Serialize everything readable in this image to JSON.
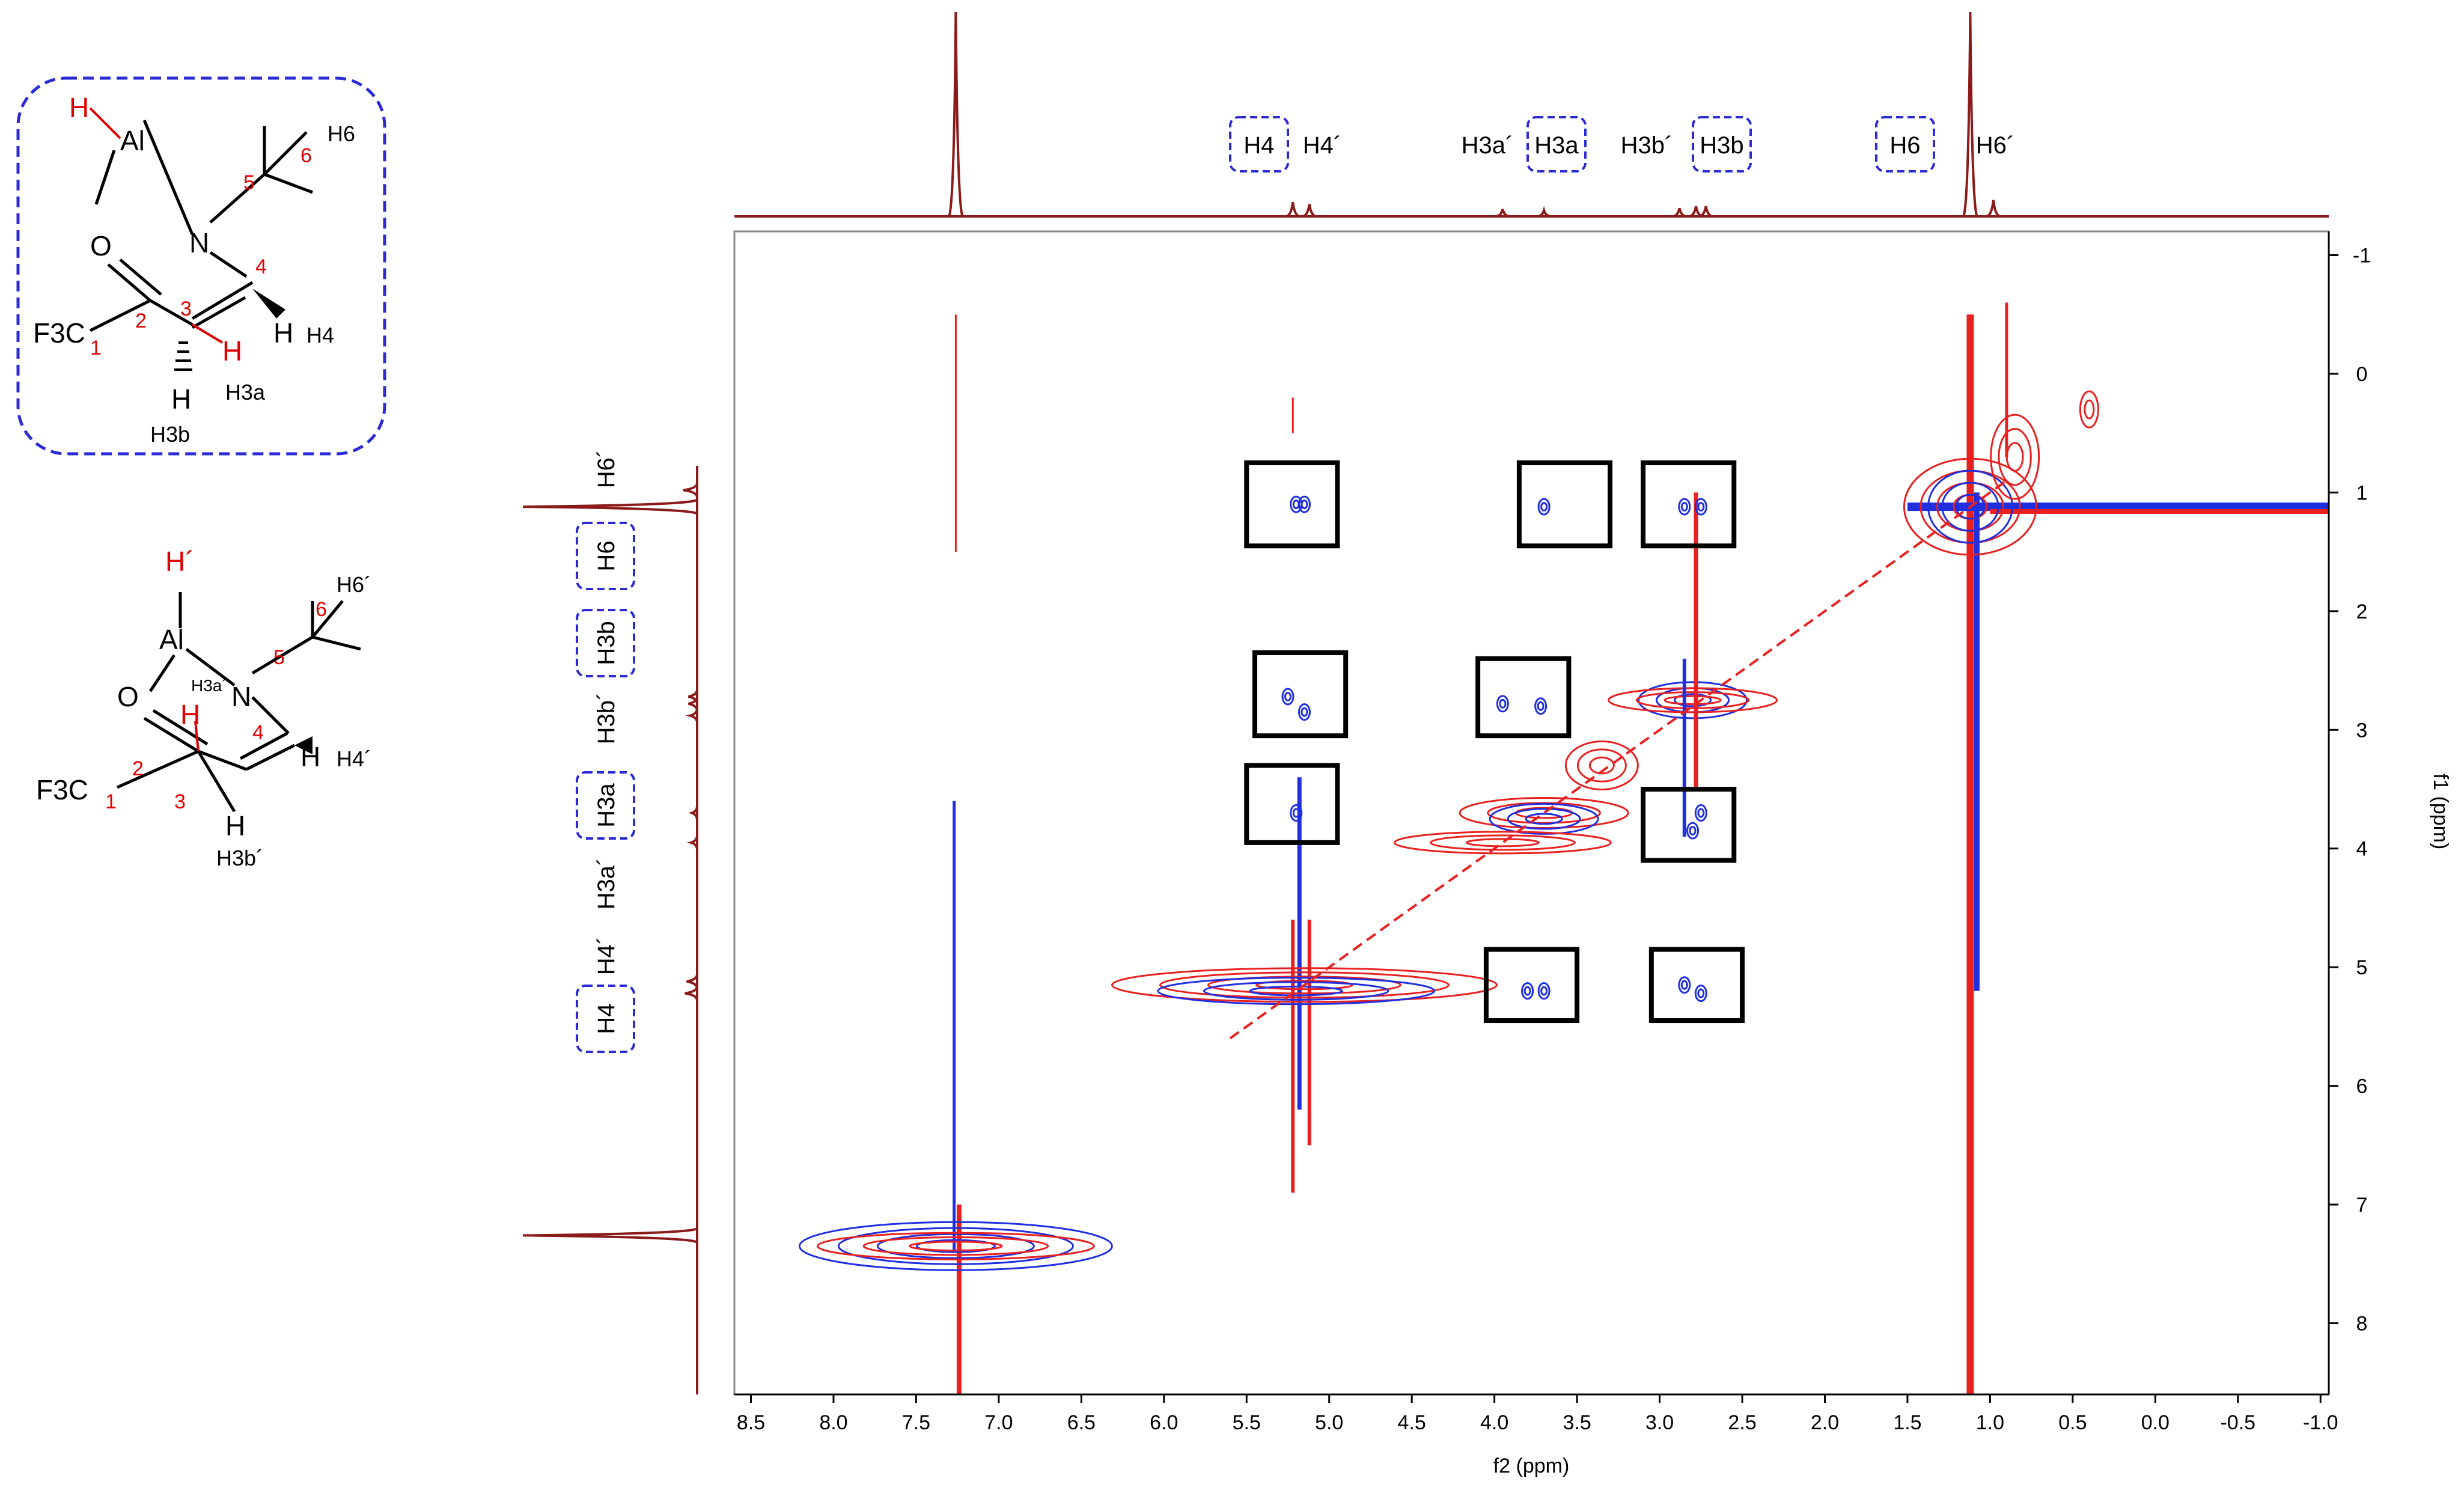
{
  "figure": {
    "structure1": {
      "atoms": {
        "h": "H",
        "al": "Al",
        "o": "O",
        "n": "N",
        "cf3": "F3C"
      },
      "numbers": [
        "1",
        "2",
        "3",
        "4",
        "5",
        "6"
      ],
      "labels": {
        "h6": "H6",
        "h4": "H4",
        "h3a": "H3a",
        "h3b": "H3b"
      }
    },
    "structure2": {
      "atoms": {
        "h": "H´",
        "al": "Al",
        "o": "O",
        "n": "N",
        "cf3": "F3C"
      },
      "numbers": [
        "1",
        "2",
        "3",
        "4",
        "5",
        "6"
      ],
      "labels": {
        "h6": "H6´",
        "h4": "H4´",
        "h3a": "H3a´",
        "h3b": "H3b´",
        "h_red": "H"
      }
    },
    "top_labels": [
      {
        "text": "H4",
        "boxed": true
      },
      {
        "text": "H4´",
        "boxed": false
      },
      {
        "text": "H3a´",
        "boxed": false
      },
      {
        "text": "H3a",
        "boxed": true
      },
      {
        "text": "H3b´",
        "boxed": false
      },
      {
        "text": "H3b",
        "boxed": true
      },
      {
        "text": "H6",
        "boxed": true
      },
      {
        "text": "H6´",
        "boxed": false
      }
    ],
    "left_labels": [
      {
        "text": "H6´",
        "boxed": false
      },
      {
        "text": "H6",
        "boxed": true
      },
      {
        "text": "H3b",
        "boxed": true
      },
      {
        "text": "H3b´",
        "boxed": false
      },
      {
        "text": "H3a",
        "boxed": true
      },
      {
        "text": "H3a´",
        "boxed": false
      },
      {
        "text": "H4´",
        "boxed": false
      },
      {
        "text": "H4",
        "boxed": true
      }
    ]
  },
  "chart_data": {
    "type": "2D NMR contour (COSY/NOESY-type)",
    "xlabel": "f2 (ppm)",
    "ylabel": "f1 (ppm)",
    "xlim": [
      8.6,
      -1.05
    ],
    "ylim": [
      -1.2,
      8.6
    ],
    "x_ticks": [
      "8.5",
      "8.0",
      "7.5",
      "7.0",
      "6.5",
      "6.0",
      "5.5",
      "5.0",
      "4.5",
      "4.0",
      "3.5",
      "3.0",
      "2.5",
      "2.0",
      "1.5",
      "1.0",
      "0.5",
      "0.0",
      "-0.5",
      "-1.0"
    ],
    "y_ticks": [
      "-1",
      "0",
      "1",
      "2",
      "3",
      "4",
      "5",
      "6",
      "7",
      "8"
    ],
    "peaks_1d": [
      {
        "ppm": 7.26,
        "height": 1.0
      },
      {
        "ppm": 5.22,
        "height": 0.07
      },
      {
        "ppm": 5.12,
        "height": 0.06
      },
      {
        "ppm": 3.95,
        "height": 0.035
      },
      {
        "ppm": 3.7,
        "height": 0.03
      },
      {
        "ppm": 2.88,
        "height": 0.04
      },
      {
        "ppm": 2.78,
        "height": 0.05
      },
      {
        "ppm": 2.72,
        "height": 0.05
      },
      {
        "ppm": 1.12,
        "height": 1.0
      },
      {
        "ppm": 0.98,
        "height": 0.08
      }
    ],
    "highlight_boxes": [
      {
        "f2": [
          5.5,
          4.95
        ],
        "f1": [
          0.75,
          1.45
        ]
      },
      {
        "f2": [
          3.85,
          3.3
        ],
        "f1": [
          0.75,
          1.45
        ]
      },
      {
        "f2": [
          3.1,
          2.55
        ],
        "f1": [
          0.75,
          1.45
        ]
      },
      {
        "f2": [
          5.45,
          4.9
        ],
        "f1": [
          2.35,
          3.05
        ]
      },
      {
        "f2": [
          4.1,
          3.55
        ],
        "f1": [
          2.4,
          3.05
        ]
      },
      {
        "f2": [
          5.5,
          4.95
        ],
        "f1": [
          3.3,
          3.95
        ]
      },
      {
        "f2": [
          3.1,
          2.55
        ],
        "f1": [
          3.5,
          4.1
        ]
      },
      {
        "f2": [
          4.05,
          3.5
        ],
        "f1": [
          4.85,
          5.45
        ]
      },
      {
        "f2": [
          3.05,
          2.5
        ],
        "f1": [
          4.85,
          5.45
        ]
      }
    ],
    "positive_color": "#e8201f",
    "negative_color": "#1f2fe0",
    "spectrum_color": "#8b1a1a"
  }
}
